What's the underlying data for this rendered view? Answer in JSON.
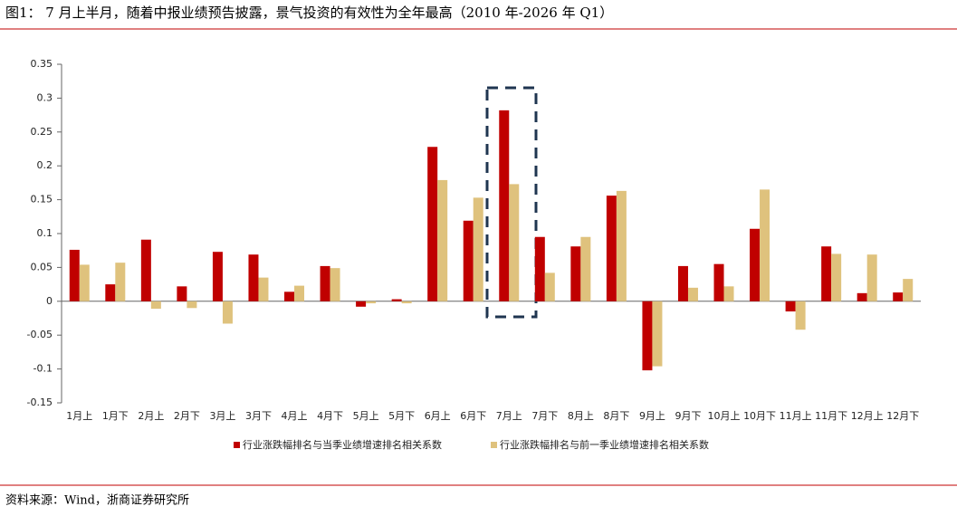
{
  "title": "图1：  7 月上半月，随着中报业绩预告披露，景气投资的有效性为全年最高（2010 年-2026 年 Q1）",
  "source": "资料来源：Wind，浙商证券研究所",
  "chart_data": {
    "type": "bar",
    "categories": [
      "1月上",
      "1月下",
      "2月上",
      "2月下",
      "3月上",
      "3月下",
      "4月上",
      "4月下",
      "5月上",
      "5月下",
      "6月上",
      "6月下",
      "7月上",
      "7月下",
      "8月上",
      "8月下",
      "9月上",
      "9月下",
      "10月上",
      "10月下",
      "11月上",
      "11月下",
      "12月上",
      "12月下"
    ],
    "series": [
      {
        "name": "行业涨跌幅排名与当季业绩增速排名相关系数",
        "color": "#c00000",
        "values": [
          0.076,
          0.025,
          0.091,
          0.022,
          0.073,
          0.069,
          0.014,
          0.052,
          -0.008,
          0.003,
          0.228,
          0.119,
          0.282,
          0.095,
          0.081,
          0.156,
          -0.102,
          0.052,
          0.055,
          0.107,
          -0.015,
          0.081,
          0.012,
          0.013
        ]
      },
      {
        "name": "行业涨跌幅排名与前一季业绩增速排名相关系数",
        "color": "#dfc27d",
        "values": [
          0.054,
          0.057,
          -0.011,
          -0.01,
          -0.033,
          0.035,
          0.023,
          0.049,
          -0.003,
          -0.003,
          0.179,
          0.153,
          0.173,
          0.042,
          0.095,
          0.163,
          -0.096,
          0.02,
          0.022,
          0.165,
          -0.042,
          0.07,
          0.069,
          0.033
        ]
      }
    ],
    "ylim": [
      -0.15,
      0.35
    ],
    "yticks": [
      0.35,
      0.3,
      0.25,
      0.2,
      0.15,
      0.1,
      0.05,
      0,
      -0.05,
      -0.1,
      -0.15
    ],
    "grid": false
  }
}
